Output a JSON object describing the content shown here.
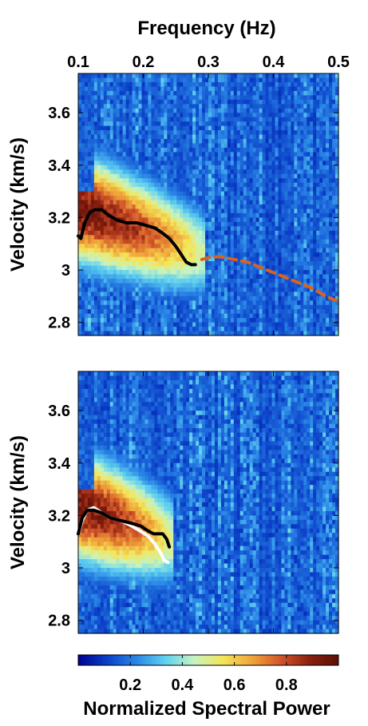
{
  "figure": {
    "top_axis_label": "Frequency (Hz)",
    "colorbar_label": "Normalized Spectral Power",
    "colormap": [
      "#00008f",
      "#0b40c8",
      "#2a86e6",
      "#5fd0f0",
      "#c6f3c2",
      "#f3e65a",
      "#f0a53a",
      "#d1552a",
      "#8a1f10",
      "#5a1008"
    ]
  },
  "chart_data": [
    {
      "type": "heatmap",
      "panel": "top",
      "xlabel": "Frequency (Hz)",
      "ylabel": "Velocity (km/s)",
      "xlim": [
        0.1,
        0.5
      ],
      "ylim": [
        2.75,
        3.75
      ],
      "xticks": [
        0.1,
        0.2,
        0.3,
        0.4,
        0.5
      ],
      "xtick_labels": [
        "0.1",
        "0.2",
        "0.3",
        "0.4",
        "0.5"
      ],
      "yticks": [
        2.8,
        3.0,
        3.2,
        3.4,
        3.6
      ],
      "ytick_labels": [
        "2.8",
        "3",
        "3.2",
        "3.4",
        "3.6"
      ],
      "series": [
        {
          "style": "black-solid",
          "color": "#000000",
          "x": [
            0.1,
            0.104,
            0.11,
            0.118,
            0.126,
            0.136,
            0.146,
            0.16,
            0.174,
            0.19,
            0.204,
            0.218,
            0.23,
            0.24,
            0.25,
            0.258,
            0.266,
            0.274,
            0.28
          ],
          "y": [
            3.13,
            3.12,
            3.18,
            3.22,
            3.23,
            3.23,
            3.21,
            3.19,
            3.18,
            3.18,
            3.17,
            3.16,
            3.14,
            3.12,
            3.09,
            3.06,
            3.03,
            3.02,
            3.02
          ]
        },
        {
          "style": "orange-dashed",
          "color": "#d9631e",
          "x": [
            0.29,
            0.305,
            0.32,
            0.34,
            0.36,
            0.38,
            0.4,
            0.42,
            0.44,
            0.46,
            0.48,
            0.5
          ],
          "y": [
            3.04,
            3.05,
            3.05,
            3.04,
            3.03,
            3.01,
            2.99,
            2.97,
            2.95,
            2.93,
            2.9,
            2.88
          ]
        }
      ]
    },
    {
      "type": "heatmap",
      "panel": "bottom",
      "xlabel": "",
      "ylabel": "Velocity (km/s)",
      "xlim": [
        0.1,
        0.5
      ],
      "ylim": [
        2.75,
        3.75
      ],
      "yticks": [
        2.8,
        3.0,
        3.2,
        3.4,
        3.6
      ],
      "ytick_labels": [
        "2.8",
        "3",
        "3.2",
        "3.4",
        "3.6"
      ],
      "series": [
        {
          "style": "white-solid",
          "color": "#ffffff",
          "x": [
            0.1,
            0.106,
            0.114,
            0.124,
            0.136,
            0.15,
            0.166,
            0.182,
            0.196,
            0.208,
            0.218,
            0.226,
            0.232,
            0.238
          ],
          "y": [
            3.13,
            3.18,
            3.22,
            3.23,
            3.21,
            3.19,
            3.18,
            3.16,
            3.14,
            3.12,
            3.09,
            3.06,
            3.03,
            3.02
          ]
        },
        {
          "style": "black-solid",
          "color": "#000000",
          "x": [
            0.1,
            0.106,
            0.114,
            0.124,
            0.136,
            0.15,
            0.166,
            0.182,
            0.196,
            0.208,
            0.216,
            0.224,
            0.23,
            0.236,
            0.24
          ],
          "y": [
            3.13,
            3.19,
            3.22,
            3.22,
            3.21,
            3.19,
            3.18,
            3.17,
            3.16,
            3.14,
            3.13,
            3.13,
            3.13,
            3.11,
            3.08
          ]
        }
      ]
    },
    {
      "type": "colorbar",
      "label": "Normalized Spectral Power",
      "range": [
        0,
        1
      ],
      "ticks": [
        0.2,
        0.4,
        0.6,
        0.8
      ],
      "tick_labels": [
        "0.2",
        "0.4",
        "0.6",
        "0.8"
      ]
    }
  ]
}
